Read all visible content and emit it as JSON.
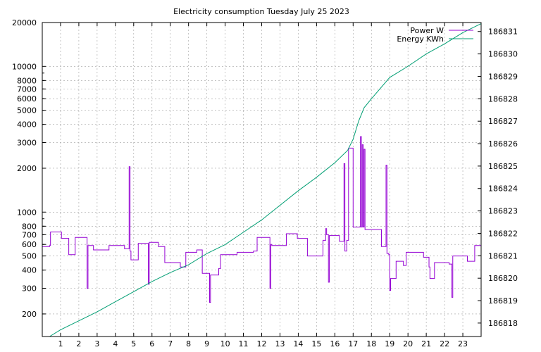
{
  "chart_data": {
    "type": "line",
    "title": "Electricity consumption Tuesday July 25 2023",
    "xlabel": "",
    "ylabel": "",
    "y2label": "",
    "grid": true,
    "legend_position": "top-right",
    "xlim": [
      0,
      24
    ],
    "x_ticks": [
      1,
      2,
      3,
      4,
      5,
      6,
      7,
      8,
      9,
      10,
      11,
      12,
      13,
      14,
      15,
      16,
      17,
      18,
      19,
      20,
      21,
      22,
      23
    ],
    "y_scale": "log",
    "ylim": [
      140,
      20000
    ],
    "y_ticks": [
      200,
      300,
      400,
      500,
      600,
      700,
      800,
      1000,
      2000,
      3000,
      4000,
      5000,
      6000,
      7000,
      8000,
      10000,
      20000
    ],
    "y2_scale": "linear",
    "y2lim": [
      186817.4,
      186831.4
    ],
    "y2_ticks": [
      186818,
      186819,
      186820,
      186821,
      186822,
      186823,
      186824,
      186825,
      186826,
      186827,
      186828,
      186829,
      186830,
      186831
    ],
    "series": [
      {
        "name": "Power W",
        "axis": "left",
        "color": "#9400d3",
        "style": "steps",
        "points": [
          [
            0,
            580
          ],
          [
            0.4,
            590
          ],
          [
            0.45,
            730
          ],
          [
            1.05,
            660
          ],
          [
            1.45,
            510
          ],
          [
            1.8,
            670
          ],
          [
            2.4,
            670
          ],
          [
            2.45,
            300
          ],
          [
            2.5,
            590
          ],
          [
            2.8,
            550
          ],
          [
            3.6,
            550
          ],
          [
            3.65,
            590
          ],
          [
            4.5,
            560
          ],
          [
            4.7,
            560
          ],
          [
            4.75,
            2050
          ],
          [
            4.8,
            540
          ],
          [
            4.85,
            470
          ],
          [
            5.2,
            470
          ],
          [
            5.25,
            610
          ],
          [
            5.75,
            610
          ],
          [
            5.8,
            320
          ],
          [
            5.85,
            620
          ],
          [
            6.3,
            620
          ],
          [
            6.35,
            580
          ],
          [
            6.65,
            580
          ],
          [
            6.7,
            450
          ],
          [
            7.5,
            450
          ],
          [
            7.55,
            420
          ],
          [
            7.8,
            420
          ],
          [
            7.85,
            530
          ],
          [
            8.4,
            530
          ],
          [
            8.45,
            550
          ],
          [
            8.7,
            550
          ],
          [
            8.75,
            380
          ],
          [
            9.1,
            380
          ],
          [
            9.15,
            240
          ],
          [
            9.2,
            370
          ],
          [
            9.6,
            370
          ],
          [
            9.65,
            410
          ],
          [
            9.75,
            510
          ],
          [
            10.6,
            510
          ],
          [
            10.65,
            530
          ],
          [
            11.5,
            530
          ],
          [
            11.55,
            540
          ],
          [
            11.7,
            540
          ],
          [
            11.75,
            670
          ],
          [
            12.4,
            670
          ],
          [
            12.45,
            300
          ],
          [
            12.5,
            600
          ],
          [
            12.55,
            590
          ],
          [
            13.3,
            590
          ],
          [
            13.35,
            710
          ],
          [
            13.9,
            710
          ],
          [
            13.95,
            660
          ],
          [
            14.45,
            660
          ],
          [
            14.5,
            500
          ],
          [
            15.3,
            500
          ],
          [
            15.35,
            640
          ],
          [
            15.45,
            640
          ],
          [
            15.5,
            770
          ],
          [
            15.55,
            700
          ],
          [
            15.6,
            700
          ],
          [
            15.65,
            330
          ],
          [
            15.7,
            690
          ],
          [
            16.2,
            690
          ],
          [
            16.25,
            630
          ],
          [
            16.45,
            630
          ],
          [
            16.5,
            2150
          ],
          [
            16.55,
            540
          ],
          [
            16.6,
            540
          ],
          [
            16.65,
            640
          ],
          [
            16.75,
            2750
          ],
          [
            17.0,
            790
          ],
          [
            17.35,
            790
          ],
          [
            17.4,
            3300
          ],
          [
            17.45,
            790
          ],
          [
            17.5,
            2900
          ],
          [
            17.55,
            790
          ],
          [
            17.6,
            2700
          ],
          [
            17.65,
            760
          ],
          [
            18.5,
            760
          ],
          [
            18.55,
            580
          ],
          [
            18.75,
            580
          ],
          [
            18.8,
            2100
          ],
          [
            18.85,
            520
          ],
          [
            18.95,
            510
          ],
          [
            19.0,
            290
          ],
          [
            19.05,
            350
          ],
          [
            19.3,
            350
          ],
          [
            19.35,
            460
          ],
          [
            19.7,
            460
          ],
          [
            19.75,
            430
          ],
          [
            19.85,
            430
          ],
          [
            19.9,
            530
          ],
          [
            20.8,
            530
          ],
          [
            20.85,
            490
          ],
          [
            21.1,
            490
          ],
          [
            21.15,
            420
          ],
          [
            21.2,
            350
          ],
          [
            21.4,
            350
          ],
          [
            21.45,
            450
          ],
          [
            22.2,
            450
          ],
          [
            22.25,
            440
          ],
          [
            22.35,
            440
          ],
          [
            22.4,
            260
          ],
          [
            22.45,
            500
          ],
          [
            23.2,
            500
          ],
          [
            23.25,
            460
          ],
          [
            23.6,
            460
          ],
          [
            23.65,
            590
          ],
          [
            24.0,
            590
          ]
        ]
      },
      {
        "name": "Energy KWh",
        "axis": "right",
        "color": "#009e73",
        "style": "line",
        "points": [
          [
            0.4,
            186817.4
          ],
          [
            1.0,
            186817.7
          ],
          [
            2.0,
            186818.1
          ],
          [
            3.0,
            186818.5
          ],
          [
            4.0,
            186818.95
          ],
          [
            5.0,
            186819.4
          ],
          [
            6.0,
            186819.85
          ],
          [
            7.0,
            186820.25
          ],
          [
            8.0,
            186820.6
          ],
          [
            9.0,
            186821.1
          ],
          [
            10.0,
            186821.5
          ],
          [
            11.0,
            186822.05
          ],
          [
            12.0,
            186822.6
          ],
          [
            13.0,
            186823.25
          ],
          [
            14.0,
            186823.9
          ],
          [
            15.0,
            186824.5
          ],
          [
            16.0,
            186825.15
          ],
          [
            16.7,
            186825.7
          ],
          [
            17.0,
            186826.2
          ],
          [
            17.3,
            186827.0
          ],
          [
            17.6,
            186827.6
          ],
          [
            18.0,
            186828.0
          ],
          [
            19.0,
            186828.95
          ],
          [
            20.0,
            186829.45
          ],
          [
            21.0,
            186830.0
          ],
          [
            22.0,
            186830.45
          ],
          [
            23.0,
            186830.95
          ],
          [
            24.0,
            186831.35
          ]
        ]
      }
    ]
  }
}
